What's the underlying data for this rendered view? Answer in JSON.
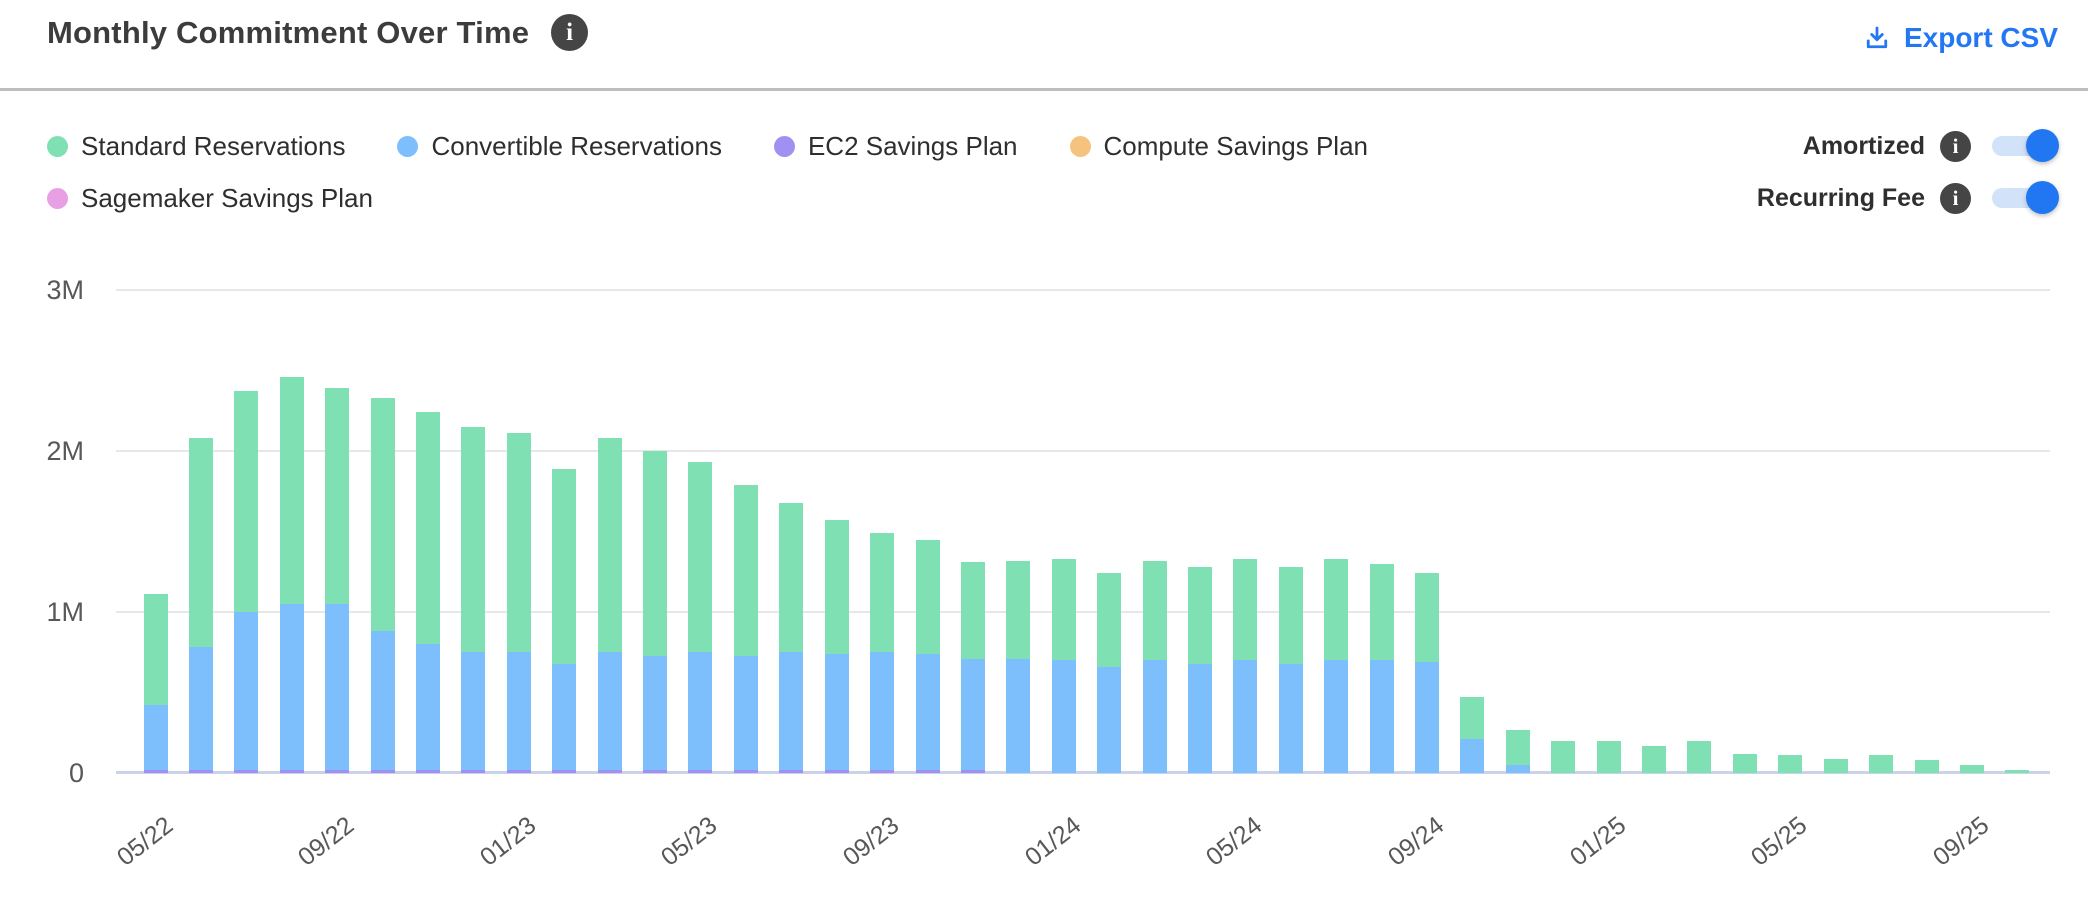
{
  "header": {
    "title": "Monthly Commitment Over Time",
    "export_label": "Export CSV"
  },
  "legend": {
    "items": [
      {
        "label": "Standard Reservations",
        "color": "#7fe0b4"
      },
      {
        "label": "Convertible Reservations",
        "color": "#7dbefd"
      },
      {
        "label": "EC2 Savings Plan",
        "color": "#9f90f2"
      },
      {
        "label": "Compute Savings Plan",
        "color": "#f6c37e"
      },
      {
        "label": "Sagemaker Savings Plan",
        "color": "#e8a0e5"
      }
    ]
  },
  "toggles": [
    {
      "label": "Amortized",
      "state": "on"
    },
    {
      "label": "Recurring Fee",
      "state": "on"
    }
  ],
  "colors": {
    "accent_blue": "#2477f3",
    "toggle_track": "#d2e3f9",
    "info_badge": "#454545",
    "gridline": "#e7e7e7",
    "axis_line": "#cbd3e8"
  },
  "chart_data": {
    "type": "bar",
    "stacked": true,
    "title": "Monthly Commitment Over Time",
    "unit": "millions USD",
    "ylim": [
      0,
      3
    ],
    "grid": "horizontal",
    "legend_position": "top-left",
    "y_ticks": [
      "0",
      "1M",
      "2M",
      "3M"
    ],
    "x_tick_every": 4,
    "x_tick_labels": [
      "05/22",
      "09/22",
      "01/23",
      "05/23",
      "09/23",
      "01/24",
      "05/24",
      "09/24",
      "01/25",
      "05/25",
      "09/25"
    ],
    "x": [
      "05/22",
      "06/22",
      "07/22",
      "08/22",
      "09/22",
      "10/22",
      "11/22",
      "12/22",
      "01/23",
      "02/23",
      "03/23",
      "04/23",
      "05/23",
      "06/23",
      "07/23",
      "08/23",
      "09/23",
      "10/23",
      "11/23",
      "12/23",
      "01/24",
      "02/24",
      "03/24",
      "04/24",
      "05/24",
      "06/24",
      "07/24",
      "08/24",
      "09/24",
      "10/24",
      "11/24",
      "12/24",
      "01/25",
      "02/25",
      "03/25",
      "04/25",
      "05/25",
      "06/25",
      "07/25",
      "08/25",
      "09/25",
      "10/25"
    ],
    "series": [
      {
        "name": "Standard Reservations",
        "color": "#7fe0b4",
        "values": [
          0.69,
          1.3,
          1.37,
          1.41,
          1.34,
          1.45,
          1.44,
          1.4,
          1.36,
          1.21,
          1.33,
          1.27,
          1.18,
          1.06,
          0.93,
          0.83,
          0.74,
          0.71,
          0.6,
          0.61,
          0.63,
          0.58,
          0.62,
          0.6,
          0.63,
          0.6,
          0.63,
          0.6,
          0.55,
          0.26,
          0.22,
          0.2,
          0.2,
          0.17,
          0.2,
          0.12,
          0.11,
          0.09,
          0.11,
          0.08,
          0.05,
          0.02
        ]
      },
      {
        "name": "Convertible Reservations",
        "color": "#7dbefd",
        "values": [
          0.4,
          0.76,
          0.98,
          1.03,
          1.03,
          0.86,
          0.78,
          0.73,
          0.73,
          0.66,
          0.73,
          0.71,
          0.73,
          0.71,
          0.73,
          0.72,
          0.73,
          0.72,
          0.69,
          0.71,
          0.7,
          0.66,
          0.7,
          0.68,
          0.7,
          0.68,
          0.7,
          0.7,
          0.69,
          0.21,
          0.05,
          0,
          0,
          0,
          0,
          0,
          0,
          0,
          0,
          0,
          0,
          0
        ]
      },
      {
        "name": "EC2 Savings Plan",
        "color": "#9f90f2",
        "values": [
          0.02,
          0.02,
          0.02,
          0.02,
          0.02,
          0.02,
          0.02,
          0.02,
          0.02,
          0.02,
          0.02,
          0.02,
          0.02,
          0.02,
          0.02,
          0.02,
          0.02,
          0.02,
          0.02,
          0,
          0,
          0,
          0,
          0,
          0,
          0,
          0,
          0,
          0,
          0,
          0,
          0,
          0,
          0,
          0,
          0,
          0,
          0,
          0,
          0,
          0,
          0
        ]
      },
      {
        "name": "Compute Savings Plan",
        "color": "#f6c37e",
        "values": [
          0,
          0,
          0,
          0,
          0,
          0,
          0,
          0,
          0,
          0,
          0,
          0,
          0,
          0,
          0,
          0,
          0,
          0,
          0,
          0,
          0,
          0,
          0,
          0,
          0,
          0,
          0,
          0,
          0,
          0,
          0,
          0,
          0,
          0,
          0,
          0,
          0,
          0,
          0,
          0,
          0,
          0
        ]
      },
      {
        "name": "Sagemaker Savings Plan",
        "color": "#e8a0e5",
        "values": [
          0,
          0,
          0,
          0,
          0,
          0,
          0,
          0,
          0,
          0,
          0,
          0,
          0,
          0,
          0,
          0,
          0,
          0,
          0,
          0,
          0,
          0,
          0,
          0,
          0,
          0,
          0,
          0,
          0,
          0,
          0,
          0,
          0,
          0,
          0,
          0,
          0,
          0,
          0,
          0,
          0,
          0
        ]
      }
    ]
  }
}
